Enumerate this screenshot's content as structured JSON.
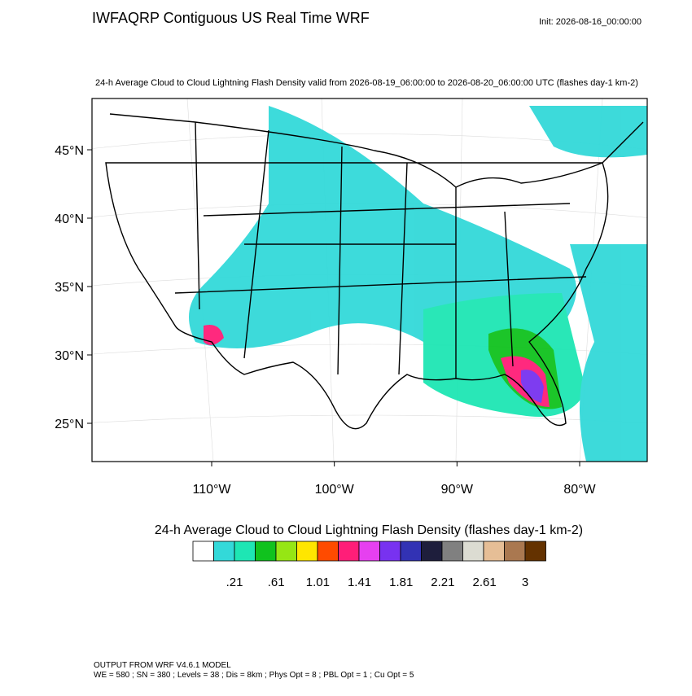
{
  "header": {
    "title": "IWFAQRP Contiguous US Real Time WRF",
    "init": "Init: 2026-08-16_00:00:00",
    "subtitle": "24-h Average Cloud to Cloud Lightning Flash Density valid from 2026-08-19_06:00:00 to 2026-08-20_06:00:00 UTC   (flashes day-1 km-2)"
  },
  "map": {
    "lat_ticks": [
      {
        "value": 25,
        "label": "25°N"
      },
      {
        "value": 30,
        "label": "30°N"
      },
      {
        "value": 35,
        "label": "35°N"
      },
      {
        "value": 40,
        "label": "40°N"
      },
      {
        "value": 45,
        "label": "45°N"
      }
    ],
    "lon_ticks": [
      {
        "value": -110,
        "label": "110°W"
      },
      {
        "value": -100,
        "label": "100°W"
      },
      {
        "value": -90,
        "label": "90°W"
      },
      {
        "value": -80,
        "label": "80°W"
      }
    ]
  },
  "colorbar": {
    "title": "24-h Average Cloud to Cloud Lightning Flash Density  (flashes day-1 km-2)",
    "colors": [
      "#ffffff",
      "#33d9d9",
      "#1ee6b4",
      "#10c21e",
      "#96e614",
      "#ffe600",
      "#ff4b00",
      "#ff1e78",
      "#e640f0",
      "#7832f0",
      "#3232b4",
      "#1e1e3c",
      "#808080",
      "#dcdcd2",
      "#e6be96",
      "#aa7850",
      "#643200"
    ],
    "labels": [
      {
        "value": 0.21,
        "label": ".21"
      },
      {
        "value": 0.61,
        "label": ".61"
      },
      {
        "value": 1.01,
        "label": "1.01"
      },
      {
        "value": 1.41,
        "label": "1.41"
      },
      {
        "value": 1.81,
        "label": "1.81"
      },
      {
        "value": 2.21,
        "label": "2.21"
      },
      {
        "value": 2.61,
        "label": "2.61"
      },
      3
    ]
  },
  "footer": {
    "line1": "OUTPUT FROM WRF V4.6.1 MODEL",
    "line2": "WE = 580 ; SN = 380 ; Levels = 38 ; Dis = 8km ; Phys Opt = 8 ; PBL Opt = 1 ; Cu Opt = 5"
  }
}
